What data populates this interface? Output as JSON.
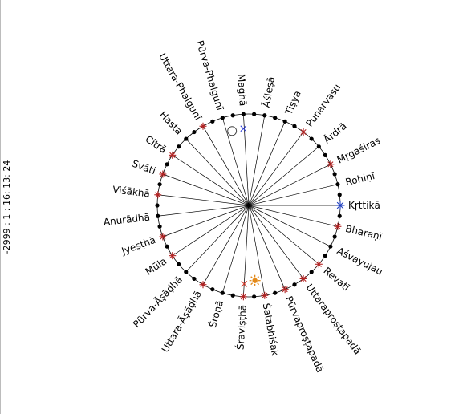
{
  "date_label": "-2999 : 1 : 16; 13: 24",
  "colors": {
    "star": "#b22222",
    "star_blue": "#1f3fbf",
    "cross_blue": "#2b3bd6",
    "cross_red": "#d23a2a",
    "sun": "#e38a1a"
  },
  "nakshatras": [
    {
      "name": "Kṛttikā",
      "marker": "star-blue"
    },
    {
      "name": "Rohiṇī",
      "marker": "dot"
    },
    {
      "name": "Mṛgaśiras",
      "marker": "star"
    },
    {
      "name": "Ārdrā",
      "marker": "dot"
    },
    {
      "name": "Punarvasu",
      "marker": "star"
    },
    {
      "name": "Tiṣya",
      "marker": "dot"
    },
    {
      "name": "Āśleṣā",
      "marker": "dot"
    },
    {
      "name": "Maghā",
      "marker": "dot"
    },
    {
      "name": "Pūrva-Phalgunī",
      "marker": "dot"
    },
    {
      "name": "Uttara-Phalgunī",
      "marker": "star"
    },
    {
      "name": "Hasta",
      "marker": "dot"
    },
    {
      "name": "Citrā",
      "marker": "star"
    },
    {
      "name": "Svāti",
      "marker": "star"
    },
    {
      "name": "Viśākhā",
      "marker": "star"
    },
    {
      "name": "Anurādhā",
      "marker": "dot"
    },
    {
      "name": "Jyeṣṭhā",
      "marker": "star"
    },
    {
      "name": "Mūla",
      "marker": "star"
    },
    {
      "name": "Pūrva-Āṣāḍhā",
      "marker": "dot"
    },
    {
      "name": "Uttara-Āṣāḍhā",
      "marker": "star"
    },
    {
      "name": "Śroṇā",
      "marker": "dot"
    },
    {
      "name": "Śraviṣṭhā",
      "marker": "star"
    },
    {
      "name": "Śatabhiśak",
      "marker": "star"
    },
    {
      "name": "Pūrvaproṣṭapadā",
      "marker": "star"
    },
    {
      "name": "Uttaraproṣṭapadā",
      "marker": "star"
    },
    {
      "name": "Revatī",
      "marker": "star"
    },
    {
      "name": "Aśvayujau",
      "marker": "dot"
    },
    {
      "name": "Bharaṇī",
      "marker": "star"
    }
  ],
  "bodies": [
    {
      "name": "moon",
      "symbol": "circle"
    },
    {
      "name": "blue-planet",
      "symbol": "cross-blue"
    },
    {
      "name": "sun",
      "symbol": "sun"
    },
    {
      "name": "red-planet",
      "symbol": "cross-red"
    }
  ]
}
